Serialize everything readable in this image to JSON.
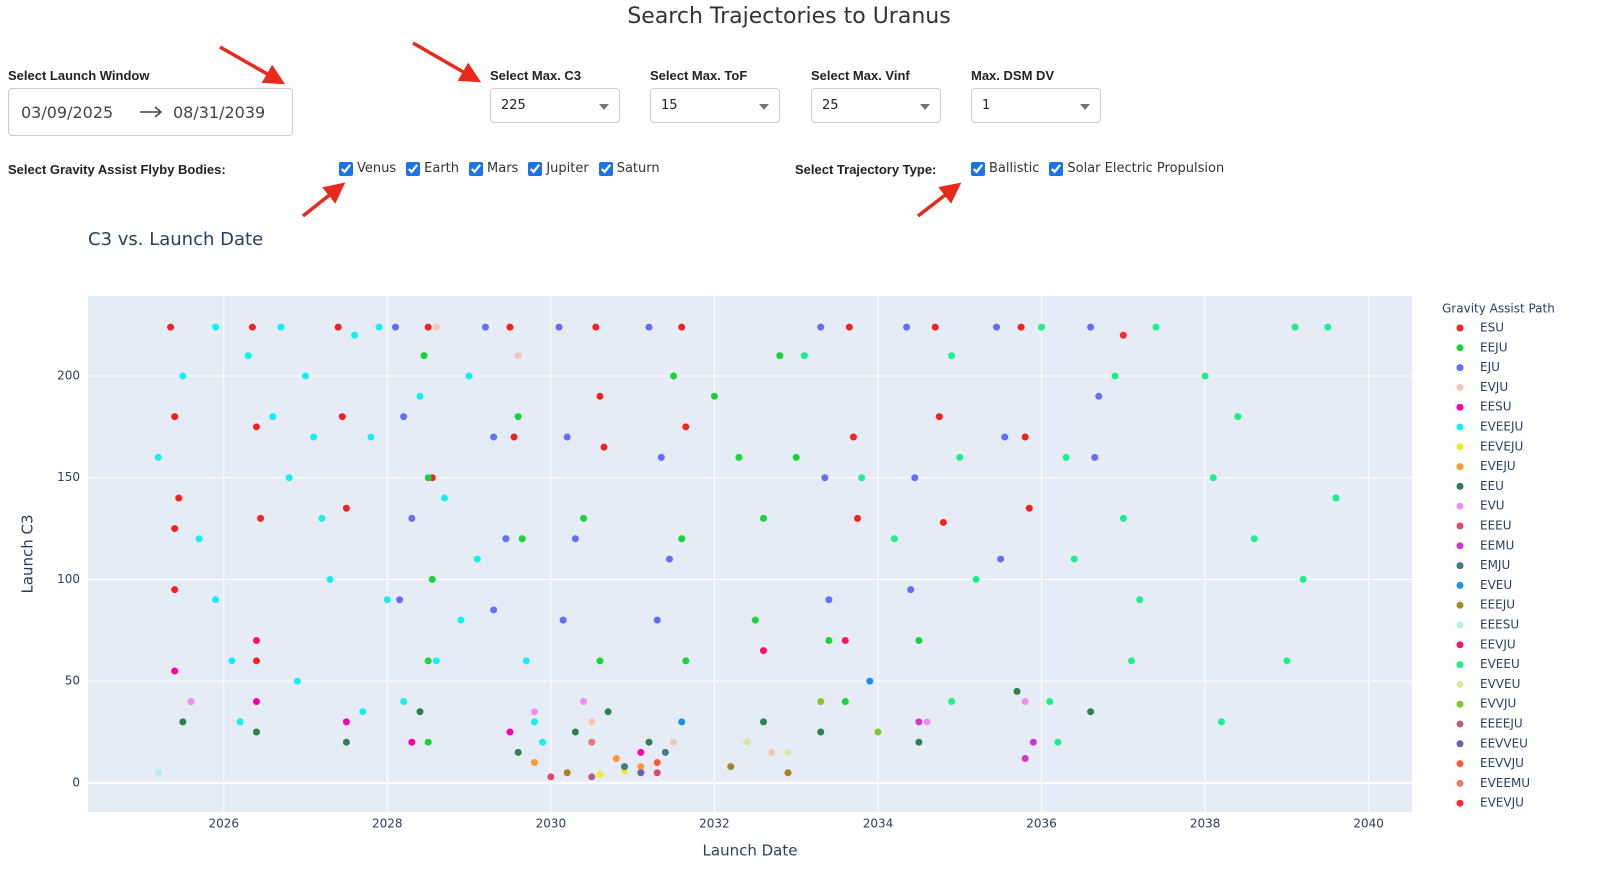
{
  "header": {
    "title": "Search Trajectories to Uranus"
  },
  "controls": {
    "launch_window": {
      "label": "Select Launch Window",
      "start": "03/09/2025",
      "end": "08/31/2039"
    },
    "dropdowns": [
      {
        "label": "Select Max. C3",
        "value": "225"
      },
      {
        "label": "Select Max. ToF",
        "value": "15"
      },
      {
        "label": "Select Max. Vinf",
        "value": "25"
      },
      {
        "label": "Max. DSM DV",
        "value": "1"
      }
    ],
    "flyby": {
      "label": "Select Gravity Assist Flyby Bodies:",
      "options": [
        {
          "label": "Venus",
          "checked": true
        },
        {
          "label": "Earth",
          "checked": true
        },
        {
          "label": "Mars",
          "checked": true
        },
        {
          "label": "Jupiter",
          "checked": true
        },
        {
          "label": "Saturn",
          "checked": true
        }
      ]
    },
    "trajectory_type": {
      "label": "Select Trajectory Type:",
      "options": [
        {
          "label": "Ballistic",
          "checked": true
        },
        {
          "label": "Solar Electric Propulsion",
          "checked": true
        }
      ]
    }
  },
  "chart_data": {
    "type": "scatter",
    "title": "C3 vs. Launch Date",
    "x_label": "Launch Date",
    "y_label": "Launch C3",
    "legend_title": "Gravity Assist Path",
    "xlim": [
      2024.34,
      2040.53
    ],
    "xticks": [
      2026,
      2028,
      2030,
      2032,
      2034,
      2036,
      2038,
      2040
    ],
    "ylim": [
      -14.3,
      239.3
    ],
    "yticks": [
      0,
      50,
      100,
      150,
      200
    ],
    "grid": true,
    "series": [
      {
        "name": "ESU",
        "color": "#f5231f",
        "x": [
          2025.35,
          2025.4,
          2025.45,
          2025.4,
          2026.35,
          2026.4,
          2026.45,
          2027.4,
          2027.45,
          2027.5,
          2028.5,
          2028.55,
          2029.5,
          2029.55,
          2030.55,
          2030.6,
          2030.65,
          2031.6,
          2031.65,
          2033.65,
          2033.7,
          2033.75,
          2034.7,
          2034.75,
          2034.8,
          2035.75,
          2035.8,
          2035.85,
          2025.4,
          2026.4
        ],
        "y": [
          224,
          180,
          140,
          125,
          224,
          175,
          130,
          224,
          180,
          135,
          224,
          150,
          224,
          170,
          224,
          190,
          165,
          224,
          175,
          224,
          170,
          130,
          224,
          180,
          128,
          224,
          170,
          135,
          95,
          60
        ]
      },
      {
        "name": "EEJU",
        "color": "#19d33a",
        "x": [
          2028.45,
          2028.5,
          2028.55,
          2028.5,
          2029.6,
          2029.65,
          2030.4,
          2030.6,
          2031.5,
          2031.6,
          2031.65,
          2032.0,
          2032.3,
          2032.6,
          2032.8,
          2033.0,
          2032.5,
          2033.4,
          2033.6,
          2034.5,
          2028.5
        ],
        "y": [
          210,
          150,
          100,
          60,
          180,
          120,
          130,
          60,
          200,
          120,
          60,
          190,
          160,
          130,
          210,
          160,
          80,
          70,
          40,
          70,
          20
        ]
      },
      {
        "name": "EJU",
        "color": "#636efa",
        "x": [
          2028.1,
          2028.2,
          2028.3,
          2028.15,
          2029.2,
          2029.3,
          2029.45,
          2029.3,
          2030.1,
          2030.2,
          2030.3,
          2030.15,
          2031.2,
          2031.35,
          2031.45,
          2031.3,
          2033.3,
          2033.35,
          2033.4,
          2034.35,
          2034.45,
          2034.4,
          2035.45,
          2035.55,
          2035.5,
          2036.6,
          2036.7,
          2036.65
        ],
        "y": [
          224,
          180,
          130,
          90,
          224,
          170,
          120,
          85,
          224,
          170,
          120,
          80,
          224,
          160,
          110,
          80,
          224,
          150,
          90,
          224,
          150,
          95,
          224,
          170,
          110,
          224,
          190,
          160
        ]
      },
      {
        "name": "EVJU",
        "color": "#f5c6b0",
        "x": [
          2028.6,
          2029.6,
          2030.5,
          2031.5,
          2032.4,
          2032.7
        ],
        "y": [
          224,
          210,
          30,
          20,
          20,
          15
        ]
      },
      {
        "name": "EESU",
        "color": "#ff00aa",
        "x": [
          2025.4,
          2026.4,
          2027.5,
          2028.3,
          2029.5,
          2031.1
        ],
        "y": [
          55,
          40,
          30,
          20,
          25,
          15
        ]
      },
      {
        "name": "EVEEJU",
        "color": "#14f0f0",
        "x": [
          2025.2,
          2025.5,
          2025.7,
          2025.9,
          2026.1,
          2026.3,
          2026.6,
          2026.8,
          2027.0,
          2027.2,
          2027.3,
          2027.6,
          2027.8,
          2028.0,
          2028.4,
          2028.7,
          2028.9,
          2029.1,
          2029.7,
          2029.9,
          2025.6,
          2026.2,
          2026.9,
          2027.1,
          2027.7,
          2028.6,
          2029.0,
          2029.8,
          2025.9,
          2026.7,
          2027.9,
          2028.2
        ],
        "y": [
          160,
          200,
          120,
          90,
          60,
          210,
          180,
          150,
          200,
          130,
          100,
          220,
          170,
          90,
          190,
          140,
          80,
          110,
          60,
          20,
          40,
          30,
          50,
          170,
          35,
          60,
          200,
          30,
          224,
          224,
          224,
          40
        ]
      },
      {
        "name": "EEVEJU",
        "color": "#ecec2a",
        "x": [
          2030.6,
          2030.9
        ],
        "y": [
          4,
          6
        ]
      },
      {
        "name": "EVEJU",
        "color": "#ff9933",
        "x": [
          2029.8,
          2030.8,
          2031.1
        ],
        "y": [
          10,
          12,
          8
        ]
      },
      {
        "name": "EEU",
        "color": "#2f7f4f",
        "x": [
          2025.5,
          2026.4,
          2027.5,
          2028.4,
          2029.6,
          2030.3,
          2030.7,
          2031.2,
          2032.6,
          2033.3,
          2034.5,
          2035.7,
          2036.6
        ],
        "y": [
          30,
          25,
          20,
          35,
          15,
          25,
          35,
          20,
          30,
          25,
          20,
          45,
          35
        ]
      },
      {
        "name": "EVU",
        "color": "#f28ef2",
        "x": [
          2025.6,
          2029.8,
          2030.4,
          2034.6,
          2035.8
        ],
        "y": [
          40,
          35,
          40,
          30,
          40
        ]
      },
      {
        "name": "EEEU",
        "color": "#e04a68",
        "x": [
          2030.0,
          2031.3
        ],
        "y": [
          3,
          5
        ]
      },
      {
        "name": "EEMU",
        "color": "#d234d2",
        "x": [
          2034.5,
          2035.8,
          2035.9
        ],
        "y": [
          30,
          12,
          20
        ]
      },
      {
        "name": "EMJU",
        "color": "#3e7e8c",
        "x": [
          2030.9,
          2031.4
        ],
        "y": [
          8,
          15
        ]
      },
      {
        "name": "EVEU",
        "color": "#1e90e6",
        "x": [
          2031.6,
          2033.9
        ],
        "y": [
          30,
          50
        ]
      },
      {
        "name": "EEEJU",
        "color": "#a3862a",
        "x": [
          2030.2,
          2032.2,
          2032.9
        ],
        "y": [
          5,
          8,
          5
        ]
      },
      {
        "name": "EEESU",
        "color": "#b2f0e6",
        "x": [
          2025.2
        ],
        "y": [
          5
        ]
      },
      {
        "name": "EEVJU",
        "color": "#ff1464",
        "x": [
          2026.4,
          2032.6,
          2033.6
        ],
        "y": [
          70,
          65,
          70
        ]
      },
      {
        "name": "EVEEU",
        "color": "#1cf08c",
        "x": [
          2033.1,
          2033.8,
          2034.2,
          2034.9,
          2035.0,
          2035.2,
          2036.0,
          2036.3,
          2036.4,
          2036.9,
          2037.0,
          2037.2,
          2037.4,
          2038.0,
          2038.1,
          2038.4,
          2038.6,
          2039.1,
          2039.2,
          2039.5,
          2039.6,
          2036.1,
          2037.1,
          2038.2,
          2039.0,
          2034.9,
          2036.2
        ],
        "y": [
          210,
          150,
          120,
          210,
          160,
          100,
          224,
          160,
          110,
          200,
          130,
          90,
          224,
          200,
          150,
          180,
          120,
          224,
          100,
          224,
          140,
          40,
          60,
          30,
          60,
          40,
          20
        ]
      },
      {
        "name": "EVVEU",
        "color": "#dde69b",
        "x": [
          2032.4,
          2032.9
        ],
        "y": [
          20,
          15
        ]
      },
      {
        "name": "EVVJU",
        "color": "#7fc832",
        "x": [
          2033.3,
          2034.0
        ],
        "y": [
          40,
          25
        ]
      },
      {
        "name": "EEEEJU",
        "color": "#b4607c",
        "x": [
          2030.5
        ],
        "y": [
          3
        ]
      },
      {
        "name": "EEVVEU",
        "color": "#6464b4",
        "x": [
          2031.1
        ],
        "y": [
          5
        ]
      },
      {
        "name": "EEVVJU",
        "color": "#ff5a3c",
        "x": [
          2031.3
        ],
        "y": [
          10
        ]
      },
      {
        "name": "EVEEMU",
        "color": "#f0786a",
        "x": [
          2030.5
        ],
        "y": [
          20
        ]
      },
      {
        "name": "EVEVJU",
        "color": "#ff2a2a",
        "x": [
          2037.0
        ],
        "y": [
          220
        ]
      }
    ]
  }
}
